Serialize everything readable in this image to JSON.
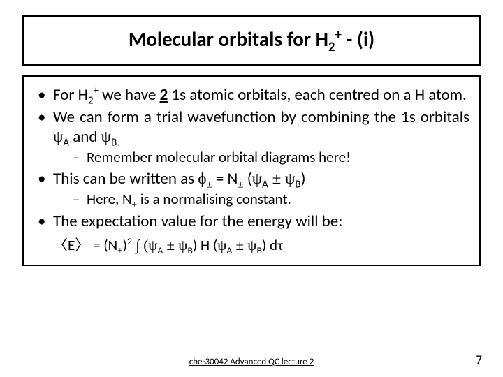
{
  "title": {
    "pre": "Molecular orbitals for H",
    "sub": "2",
    "sup": "+",
    "post": " - (i)"
  },
  "bullets": {
    "b1": {
      "pre": "For H",
      "sub": "2",
      "sup": "+",
      "mid1": " we have ",
      "two": "2",
      "mid2": " 1s atomic orbitals, each centred on a H atom."
    },
    "b2": {
      "pre": "We can form a trial wavefunction by combining the 1s orbitals ",
      "psi1": "ψ",
      "a": "A",
      "and": " and ",
      "psi2": "ψ",
      "b": "B."
    },
    "b2s": "Remember molecular orbital diagrams here!",
    "b3": {
      "pre": "This can be written as ",
      "phi": "ϕ",
      "pm1": "±",
      "eq": " = N",
      "pm2": "±",
      "open": " (",
      "psiA": "ψ",
      "a": "A",
      "pm3": " ± ",
      "psiB": "ψ",
      "b": "B",
      "close": ")"
    },
    "b3s": {
      "pre": "Here, N",
      "pm": "±",
      "post": " is a normalising constant."
    },
    "b4": "The expectation value for the energy will be:"
  },
  "equation": {
    "lang": "〈",
    "E": "E",
    "rang": "〉",
    "eq": " = (N",
    "pm1": "±",
    "sq": ")",
    "two": "2",
    "int": " ∫ (",
    "psiA1": "ψ",
    "a1": "A",
    "pm2": " ± ",
    "psiB1": "ψ",
    "b1": "B",
    "mid": ") H (",
    "psiA2": "ψ",
    "a2": "A",
    "pm3": " ± ",
    "psiB2": "ψ",
    "b2": "B",
    "end": ") d",
    "tau": "τ"
  },
  "footer": "che-30042 Advanced QC lecture 2",
  "page": "7"
}
